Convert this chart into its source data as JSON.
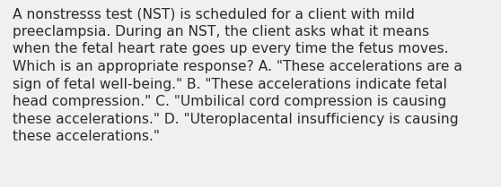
{
  "lines": [
    "A nonstresss test (NST) is scheduled for a client with mild",
    "preeclampsia. During an NST, the client asks what it means",
    "when the fetal heart rate goes up every time the fetus moves.",
    "Which is an appropriate response? A. \"These accelerations are a",
    "sign of fetal well-being.\" B. \"These accelerations indicate fetal",
    "head compression.\" C. \"Umbilical cord compression is causing",
    "these accelerations.\" D. \"Uteroplacental insufficiency is causing",
    "these accelerations.\""
  ],
  "background_color": "#f0f0f0",
  "text_color": "#2b2b2b",
  "font_size": 11.2,
  "fig_width": 5.58,
  "fig_height": 2.09,
  "dpi": 100
}
